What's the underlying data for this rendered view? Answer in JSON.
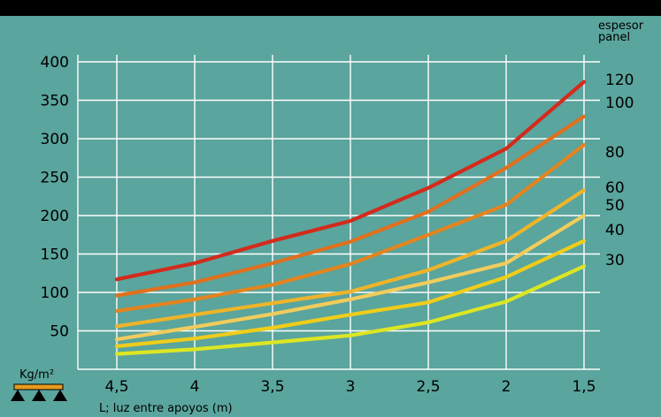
{
  "chart_data": {
    "type": "line",
    "xlabel": "L; luz entre apoyos (m)",
    "ylabel": "Kg/m²",
    "legend_title": [
      "espesor",
      "panel"
    ],
    "x": [
      4.5,
      4,
      3.5,
      3,
      2.5,
      2,
      1.5
    ],
    "x_tick_labels": [
      "4,5",
      "4",
      "3,5",
      "3",
      "2,5",
      "2",
      "1,5"
    ],
    "y_ticks": [
      50,
      100,
      150,
      200,
      250,
      300,
      350,
      400
    ],
    "xlim": [
      4.5,
      1.5
    ],
    "ylim": [
      0,
      400
    ],
    "grid": true,
    "legend_placement": "right, at line ends",
    "series": [
      {
        "name": "120",
        "color": "#d42a1c",
        "values": [
          117,
          138,
          167,
          193,
          236,
          287,
          374
        ]
      },
      {
        "name": "100",
        "color": "#e0701e",
        "values": [
          96,
          113,
          138,
          166,
          205,
          262,
          329
        ]
      },
      {
        "name": "80",
        "color": "#e3841f",
        "values": [
          76,
          91,
          110,
          137,
          175,
          214,
          292
        ]
      },
      {
        "name": "60",
        "color": "#eeb42a",
        "values": [
          56,
          71,
          86,
          101,
          129,
          167,
          233
        ]
      },
      {
        "name": "50",
        "color": "#f1cc5c",
        "values": [
          39,
          55,
          72,
          91,
          113,
          138,
          200
        ]
      },
      {
        "name": "40",
        "color": "#f0cd1a",
        "values": [
          30,
          40,
          54,
          71,
          87,
          120,
          167
        ]
      },
      {
        "name": "30",
        "color": "#dde623",
        "values": [
          20,
          26,
          35,
          44,
          61,
          88,
          134
        ]
      }
    ]
  }
}
